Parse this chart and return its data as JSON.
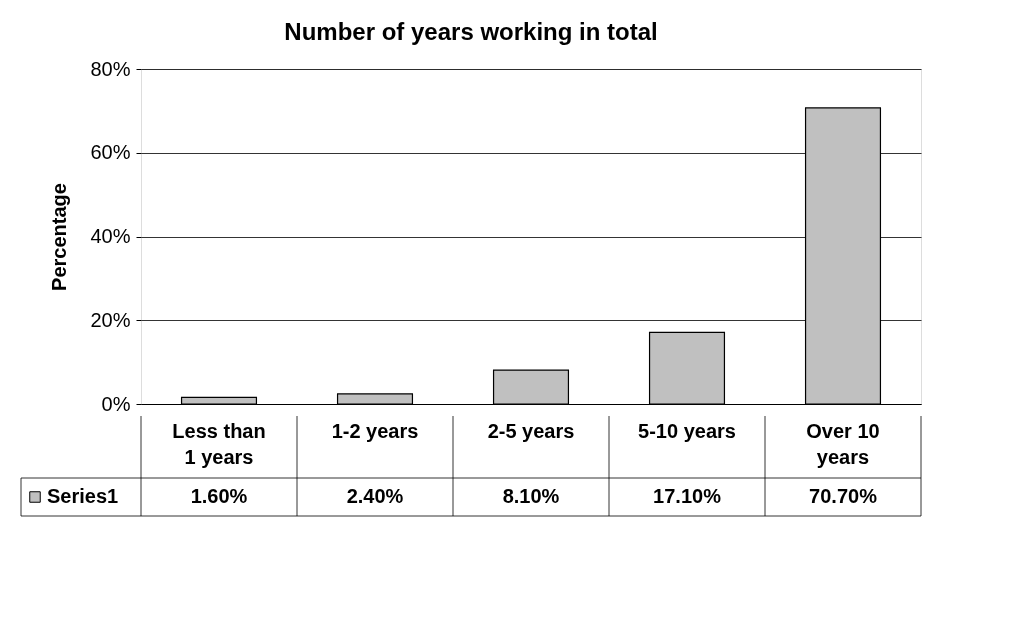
{
  "chart_data": {
    "type": "bar",
    "title": "Number of years working in total",
    "ylabel": "Percentage",
    "categories": [
      "Less than 1 years",
      "1-2 years",
      "2-5 years",
      "5-10 years",
      "Over 10 years"
    ],
    "series": [
      {
        "name": "Series1",
        "color": "#c0c0c0",
        "values": [
          1.6,
          2.4,
          8.1,
          17.1,
          70.7
        ],
        "value_labels": [
          "1.60%",
          "2.40%",
          "8.10%",
          "17.10%",
          "70.70%"
        ]
      }
    ],
    "ylim": [
      0,
      80
    ],
    "yticks": [
      {
        "value": 0,
        "label": "0%"
      },
      {
        "value": 20,
        "label": "20%"
      },
      {
        "value": 40,
        "label": "40%"
      },
      {
        "value": 60,
        "label": "60%"
      },
      {
        "value": 80,
        "label": "80%"
      }
    ],
    "grid": "y",
    "legend": "bottom left"
  }
}
